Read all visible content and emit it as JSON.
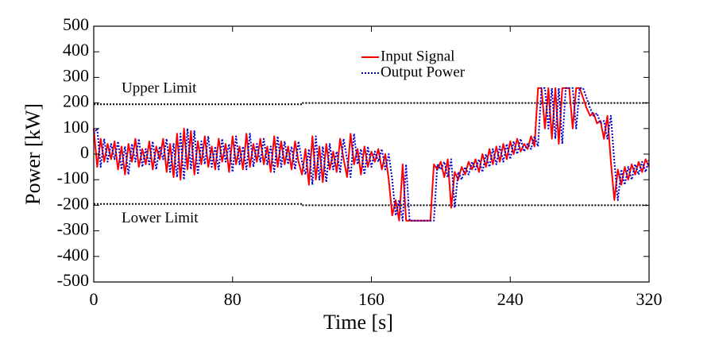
{
  "chart_data": {
    "type": "line",
    "xlabel": "Time [s]",
    "ylabel": "Power [kW]",
    "xlim": [
      0,
      320
    ],
    "xticks": [
      0,
      80,
      160,
      240,
      320
    ],
    "ylim": [
      -500,
      500
    ],
    "yticks": [
      -500,
      -400,
      -300,
      -200,
      -100,
      0,
      100,
      200,
      300,
      400,
      500
    ],
    "legend": "top-center",
    "grid": false,
    "x": [
      0,
      2,
      4,
      6,
      8,
      10,
      12,
      14,
      16,
      18,
      20,
      22,
      24,
      26,
      28,
      30,
      32,
      34,
      36,
      38,
      40,
      42,
      44,
      46,
      48,
      50,
      52,
      54,
      56,
      58,
      60,
      62,
      64,
      66,
      68,
      70,
      72,
      74,
      76,
      78,
      80,
      82,
      84,
      86,
      88,
      90,
      92,
      94,
      96,
      98,
      100,
      102,
      104,
      106,
      108,
      110,
      112,
      114,
      116,
      118,
      120,
      122,
      124,
      126,
      128,
      130,
      132,
      134,
      136,
      138,
      140,
      142,
      144,
      146,
      148,
      150,
      152,
      154,
      156,
      158,
      160,
      162,
      164,
      166,
      168,
      170,
      172,
      174,
      176,
      178,
      180,
      182,
      184,
      186,
      188,
      190,
      192,
      194,
      196,
      198,
      200,
      202,
      204,
      206,
      208,
      210,
      212,
      214,
      216,
      218,
      220,
      222,
      224,
      226,
      228,
      230,
      232,
      234,
      236,
      238,
      240,
      242,
      244,
      246,
      248,
      250,
      252,
      254,
      256,
      258,
      260,
      262,
      264,
      266,
      268,
      270,
      272,
      274,
      276,
      278,
      280,
      282,
      284,
      286,
      288,
      290,
      292,
      294,
      296,
      298,
      300,
      302,
      304,
      306,
      308,
      310,
      312,
      314,
      316,
      318,
      320
    ],
    "series": [
      {
        "name": "Input Signal",
        "color": "#ff0000",
        "style": "solid",
        "values": [
          100,
          -50,
          60,
          -30,
          40,
          -20,
          50,
          -60,
          30,
          -80,
          40,
          -30,
          60,
          -50,
          20,
          -40,
          50,
          -60,
          30,
          -20,
          60,
          -70,
          40,
          -90,
          80,
          -100,
          100,
          -60,
          90,
          -80,
          50,
          -40,
          70,
          -50,
          30,
          -60,
          60,
          -30,
          40,
          -70,
          70,
          -40,
          30,
          -60,
          80,
          -50,
          40,
          -30,
          60,
          -40,
          30,
          -70,
          70,
          -50,
          50,
          -40,
          30,
          -60,
          50,
          -30,
          -80,
          20,
          -120,
          70,
          -100,
          30,
          -110,
          40,
          -60,
          10,
          -70,
          60,
          -20,
          -90,
          80,
          -40,
          20,
          -80,
          30,
          -50,
          10,
          -30,
          20,
          -60,
          0,
          -100,
          -240,
          -180,
          -260,
          -40,
          -260,
          -260,
          -260,
          -260,
          -260,
          -260,
          -260,
          -260,
          -40,
          -60,
          -30,
          -90,
          -20,
          -210,
          -70,
          -100,
          -50,
          -80,
          -30,
          -60,
          -20,
          -70,
          0,
          -50,
          20,
          -40,
          30,
          -30,
          40,
          -20,
          50,
          0,
          60,
          10,
          40,
          20,
          70,
          30,
          258,
          258,
          100,
          258,
          60,
          258,
          40,
          258,
          258,
          258,
          100,
          258,
          258,
          220,
          180,
          150,
          160,
          120,
          130,
          60,
          150,
          -30,
          -180,
          -60,
          -120,
          -50,
          -100,
          -40,
          -80,
          -30,
          -70,
          -20,
          -50
        ]
      },
      {
        "name": "Output Power",
        "color": "#0000cc",
        "style": "dotted",
        "values": [
          80,
          100,
          -50,
          60,
          -30,
          40,
          -20,
          50,
          -60,
          30,
          -80,
          40,
          -30,
          60,
          -50,
          20,
          -40,
          50,
          -60,
          30,
          -20,
          60,
          -70,
          40,
          -90,
          80,
          -100,
          100,
          -60,
          90,
          -80,
          50,
          -40,
          70,
          -50,
          30,
          -60,
          60,
          -30,
          40,
          -70,
          70,
          -40,
          30,
          -60,
          80,
          -50,
          40,
          -30,
          60,
          -40,
          30,
          -70,
          70,
          -50,
          50,
          -40,
          30,
          -60,
          50,
          -30,
          -80,
          20,
          -120,
          70,
          -100,
          30,
          -110,
          40,
          -60,
          10,
          -70,
          60,
          -20,
          -90,
          80,
          -40,
          20,
          -80,
          30,
          -50,
          10,
          -30,
          20,
          -60,
          0,
          -100,
          -240,
          -180,
          -260,
          -40,
          -260,
          -260,
          -260,
          -260,
          -260,
          -260,
          -260,
          -260,
          -40,
          -60,
          -30,
          -90,
          -20,
          -210,
          -70,
          -100,
          -50,
          -80,
          -30,
          -60,
          -20,
          -70,
          0,
          -50,
          20,
          -40,
          30,
          -30,
          40,
          -20,
          50,
          0,
          60,
          10,
          40,
          20,
          70,
          30,
          258,
          258,
          100,
          258,
          60,
          258,
          40,
          258,
          258,
          258,
          100,
          258,
          258,
          220,
          180,
          150,
          160,
          120,
          130,
          60,
          150,
          -30,
          -180,
          -60,
          -120,
          -50,
          -100,
          -40,
          -80,
          -30,
          -70,
          -20
        ]
      }
    ],
    "limit_lines": [
      {
        "label": "Upper Limit",
        "color": "#000000",
        "x": [
          0,
          120,
          120,
          320
        ],
        "values": [
          195,
          195,
          200,
          200
        ]
      },
      {
        "label": "Lower Limit",
        "color": "#000000",
        "x": [
          0,
          120,
          120,
          320
        ],
        "values": [
          -195,
          -195,
          -200,
          -200
        ]
      }
    ]
  }
}
